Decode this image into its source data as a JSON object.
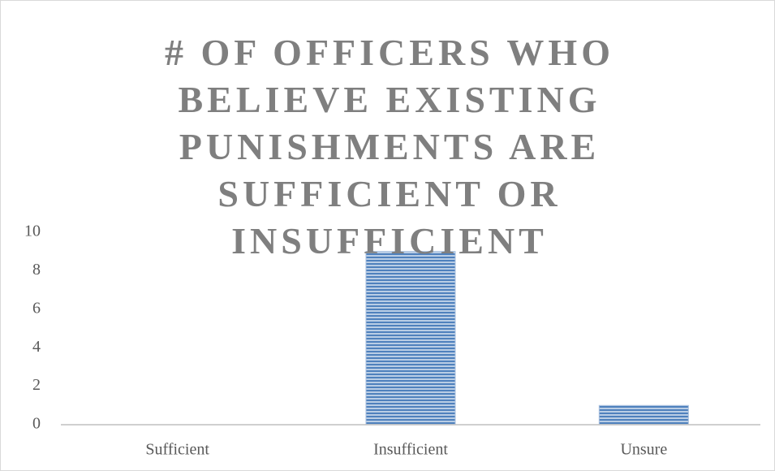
{
  "chart_data": {
    "type": "bar",
    "title": "# OF OFFICERS WHO BELIEVE EXISTING PUNISHMENTS ARE SUFFICIENT OR INSUFFICIENT",
    "categories": [
      "Sufficient",
      "Insufficient",
      "Unsure"
    ],
    "values": [
      0,
      9,
      1
    ],
    "color": "#4f81bd",
    "ylim": [
      0,
      10
    ],
    "yticks": [
      0,
      2,
      4,
      6,
      8,
      10
    ],
    "grid": false
  }
}
